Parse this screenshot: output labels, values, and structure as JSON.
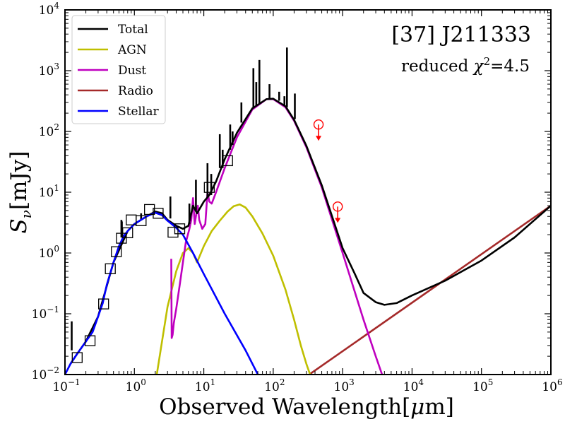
{
  "chart_data": {
    "type": "line",
    "scale": {
      "x": "log",
      "y": "log"
    },
    "xlim": [
      0.1,
      1000000
    ],
    "ylim": [
      0.01,
      10000
    ],
    "xticks": [
      {
        "base": "10",
        "exp": "−1",
        "value": 0.1
      },
      {
        "base": "10",
        "exp": "0",
        "value": 1
      },
      {
        "base": "10",
        "exp": "1",
        "value": 10
      },
      {
        "base": "10",
        "exp": "2",
        "value": 100
      },
      {
        "base": "10",
        "exp": "3",
        "value": 1000
      },
      {
        "base": "10",
        "exp": "4",
        "value": 10000
      },
      {
        "base": "10",
        "exp": "5",
        "value": 100000
      },
      {
        "base": "10",
        "exp": "6",
        "value": 1000000
      }
    ],
    "yticks": [
      {
        "base": "10",
        "exp": "−2",
        "value": 0.01
      },
      {
        "base": "10",
        "exp": "−1",
        "value": 0.1
      },
      {
        "base": "10",
        "exp": "0",
        "value": 1
      },
      {
        "base": "10",
        "exp": "1",
        "value": 10
      },
      {
        "base": "10",
        "exp": "2",
        "value": 100
      },
      {
        "base": "10",
        "exp": "3",
        "value": 1000
      },
      {
        "base": "10",
        "exp": "4",
        "value": 10000
      }
    ],
    "xlabel": {
      "text": "Observed Wavelength[",
      "symbol": "μ",
      "suffix": "m]"
    },
    "ylabel": {
      "S": "S",
      "sub": "ν",
      "rest": "[mJy]"
    },
    "title": "[37] J211333",
    "chi2": {
      "prefix": "reduced ",
      "chi": "χ",
      "sup": "2",
      "suffix": "=4.5"
    },
    "legend": {
      "position": "top-left",
      "entries": [
        {
          "label": "Total",
          "color": "#000000"
        },
        {
          "label": "AGN",
          "color": "#bfbf00"
        },
        {
          "label": "Dust",
          "color": "#bf00bf"
        },
        {
          "label": "Radio",
          "color": "#a52a2a"
        },
        {
          "label": "Stellar",
          "color": "#0000ff"
        }
      ]
    },
    "series": [
      {
        "name": "Stellar",
        "color": "#0000ff",
        "x": [
          0.1,
          0.12,
          0.15,
          0.2,
          0.25,
          0.3,
          0.35,
          0.4,
          0.5,
          0.6,
          0.7,
          0.8,
          1.0,
          1.5,
          2.0,
          2.5,
          3.0,
          4.0,
          5.0,
          7.0,
          10.0,
          20.0,
          40.0,
          60.0
        ],
        "y": [
          0.01,
          0.015,
          0.022,
          0.035,
          0.05,
          0.09,
          0.15,
          0.3,
          0.7,
          1.3,
          1.9,
          2.3,
          3.0,
          4.0,
          4.6,
          4.2,
          3.4,
          2.6,
          2.0,
          1.0,
          0.45,
          0.1,
          0.025,
          0.01
        ]
      },
      {
        "name": "AGN",
        "color": "#bfbf00",
        "x": [
          2.1,
          2.5,
          3.0,
          4.0,
          5.0,
          6.0,
          7.0,
          8.0,
          10.0,
          13.0,
          17.0,
          22.0,
          27.0,
          33.0,
          40.0,
          50.0,
          70.0,
          100.0,
          150.0,
          200.0,
          250.0,
          300.0,
          340.0
        ],
        "y": [
          0.01,
          0.035,
          0.13,
          0.5,
          1.0,
          1.2,
          1.0,
          0.7,
          1.3,
          2.3,
          3.4,
          4.8,
          5.9,
          6.3,
          5.6,
          4.0,
          2.1,
          0.9,
          0.25,
          0.08,
          0.03,
          0.015,
          0.01
        ]
      },
      {
        "name": "Dust",
        "color": "#bf00bf",
        "x": [
          3.4,
          3.45,
          3.55,
          3.7,
          4.0,
          4.5,
          5.0,
          5.5,
          6.2,
          6.6,
          7.0,
          7.4,
          7.7,
          8.2,
          8.6,
          9.5,
          10.5,
          11.3,
          12.0,
          13.0,
          15.0,
          20.0,
          30.0,
          50.0,
          80.0,
          100.0,
          150.0,
          200.0,
          300.0,
          500.0,
          1000.0,
          2000.0,
          3000.0,
          3700.0
        ],
        "y": [
          0.8,
          0.04,
          0.045,
          0.07,
          0.12,
          0.3,
          0.7,
          1.5,
          2.5,
          3.5,
          8.0,
          3.0,
          4.0,
          6.0,
          3.5,
          2.5,
          3.0,
          10.0,
          7.0,
          6.5,
          10.0,
          25.0,
          80.0,
          230.0,
          340.0,
          340.0,
          250.0,
          150.0,
          55.0,
          12.0,
          1.0,
          0.08,
          0.02,
          0.01
        ]
      },
      {
        "name": "Radio",
        "color": "#a52a2a",
        "x": [
          330,
          1000000
        ],
        "y": [
          0.01,
          6.0
        ]
      },
      {
        "name": "Total",
        "color": "#000000",
        "x": [
          0.12,
          0.15,
          0.2,
          0.3,
          0.5,
          0.8,
          1.0,
          1.5,
          2.0,
          2.5,
          3.0,
          4.0,
          5.0,
          6.0,
          7.0,
          8.0,
          10.0,
          12.0,
          15.0,
          20.0,
          30.0,
          50.0,
          80.0,
          100.0,
          150.0,
          200.0,
          300.0,
          500.0,
          1000.0,
          1500.0,
          2000.0,
          3000.0,
          4000.0,
          6000.0,
          10000.0,
          30000.0,
          100000.0,
          300000.0,
          1000000.0
        ],
        "y": [
          0.015,
          0.022,
          0.035,
          0.09,
          0.7,
          2.3,
          3.0,
          4.0,
          4.8,
          4.5,
          3.5,
          2.8,
          2.5,
          2.8,
          6.0,
          4.5,
          7.0,
          9.0,
          15.0,
          35.0,
          95.0,
          240.0,
          340.0,
          345.0,
          260.0,
          155.0,
          58.0,
          13.0,
          1.2,
          0.45,
          0.22,
          0.155,
          0.14,
          0.15,
          0.2,
          0.35,
          0.75,
          1.8,
          6.0
        ]
      },
      {
        "name": "Total spikes",
        "color": "#000000",
        "spikes": [
          {
            "x": 0.125,
            "y0": 0.025,
            "y1": 0.075
          },
          {
            "x": 0.65,
            "y0": 1.8,
            "y1": 3.5
          },
          {
            "x": 0.66,
            "y0": 1.8,
            "y1": 3.3
          },
          {
            "x": 1.25,
            "y0": 3.6,
            "y1": 4.5
          },
          {
            "x": 3.3,
            "y0": 3.7,
            "y1": 8.5
          },
          {
            "x": 6.2,
            "y0": 3.0,
            "y1": 6.5
          },
          {
            "x": 7.7,
            "y0": 5.0,
            "y1": 16.0
          },
          {
            "x": 11.3,
            "y0": 8.0,
            "y1": 30.0
          },
          {
            "x": 12.8,
            "y0": 9.0,
            "y1": 20.0
          },
          {
            "x": 17.0,
            "y0": 25.0,
            "y1": 90.0
          },
          {
            "x": 18.7,
            "y0": 25.0,
            "y1": 50.0
          },
          {
            "x": 24.0,
            "y0": 50.0,
            "y1": 130.0
          },
          {
            "x": 26.0,
            "y0": 60.0,
            "y1": 100.0
          },
          {
            "x": 34.8,
            "y0": 140.0,
            "y1": 300.0
          },
          {
            "x": 51.8,
            "y0": 250.0,
            "y1": 1100.0
          },
          {
            "x": 57.0,
            "y0": 270.0,
            "y1": 650.0
          },
          {
            "x": 63.2,
            "y0": 290.0,
            "y1": 1500.0
          },
          {
            "x": 88.4,
            "y0": 340.0,
            "y1": 600.0
          },
          {
            "x": 121.9,
            "y0": 320.0,
            "y1": 450.0
          },
          {
            "x": 145.0,
            "y0": 270.0,
            "y1": 380.0
          },
          {
            "x": 157.7,
            "y0": 250.0,
            "y1": 2400.0
          },
          {
            "x": 205.0,
            "y0": 160.0,
            "y1": 420.0
          }
        ]
      }
    ],
    "photometry": {
      "x": [
        0.15,
        0.23,
        0.36,
        0.45,
        0.55,
        0.65,
        0.8,
        0.9,
        1.25,
        1.65,
        2.2,
        3.6,
        4.5,
        12.0,
        22.0
      ],
      "y": [
        0.019,
        0.036,
        0.145,
        0.55,
        1.05,
        1.75,
        2.15,
        3.5,
        3.4,
        5.2,
        4.5,
        2.2,
        2.5,
        12.0,
        33.0
      ]
    },
    "upper_limits": {
      "color": "#ff0000",
      "x": [
        450,
        850
      ],
      "y": [
        130,
        5.8
      ]
    }
  }
}
